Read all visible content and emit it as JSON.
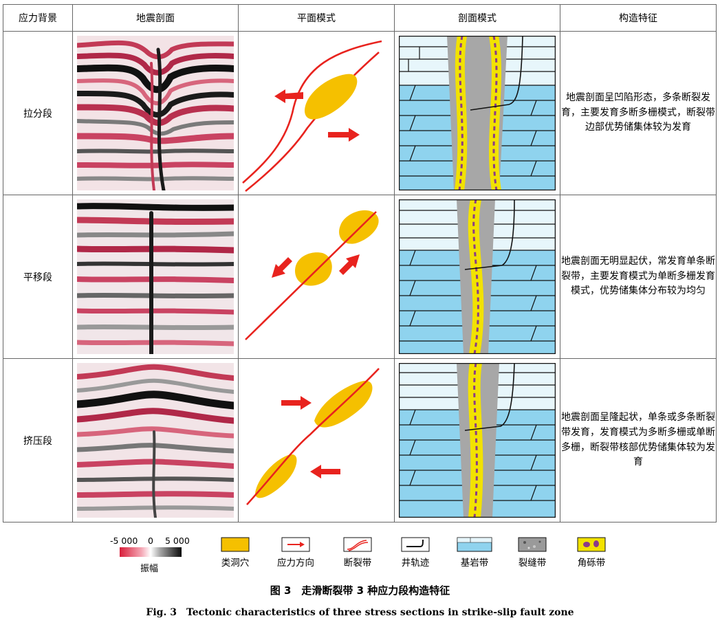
{
  "headers": [
    "应力背景",
    "地震剖面",
    "平面模式",
    "剖面模式",
    "构造特征"
  ],
  "rows": [
    {
      "label": "拉分段",
      "desc": "地震剖面呈凹陷形态，多条断裂发育，主要发育多断多栅模式，断裂带边部优势储集体较为发育"
    },
    {
      "label": "平移段",
      "desc": "地震剖面无明显起伏，常发育单条断裂带，主要发育模式为单断多栅发育模式，优势储集体分布较为均匀"
    },
    {
      "label": "挤压段",
      "desc": "地震剖面呈隆起状，单条或多条断裂带发育，发育模式为多断多栅或单断多栅，断裂带核部优势储集体较为发育"
    }
  ],
  "colorbar": {
    "min_label": "-5 000",
    "mid_label": "0",
    "max_label": "5 000",
    "title": "振幅"
  },
  "legend": [
    {
      "key": "cave",
      "label": "类洞穴",
      "icon": "yellow-swatch",
      "color": "#f5c000"
    },
    {
      "key": "stress",
      "label": "应力方向",
      "icon": "red-arrow",
      "color": "#e8231e"
    },
    {
      "key": "fault",
      "label": "断裂带",
      "icon": "red-curve",
      "color": "#e8231e"
    },
    {
      "key": "well",
      "label": "井轨迹",
      "icon": "black-well-curve",
      "color": "#111111"
    },
    {
      "key": "bedrock",
      "label": "基岩带",
      "icon": "blue-bedrock-swatch",
      "color": "#8fd3ee"
    },
    {
      "key": "fracture",
      "label": "裂缝带",
      "icon": "grey-speckle-swatch",
      "color": "#9a9a9a"
    },
    {
      "key": "breccia",
      "label": "角砾带",
      "icon": "yellow-purple-swatch",
      "color": "#f2e200"
    }
  ],
  "caption_cn": "图 3　走滑断裂带 3 种应力段构造特征",
  "caption_en": "Fig. 3　Tectonic characteristics of three stress sections in strike-slip fault zone"
}
